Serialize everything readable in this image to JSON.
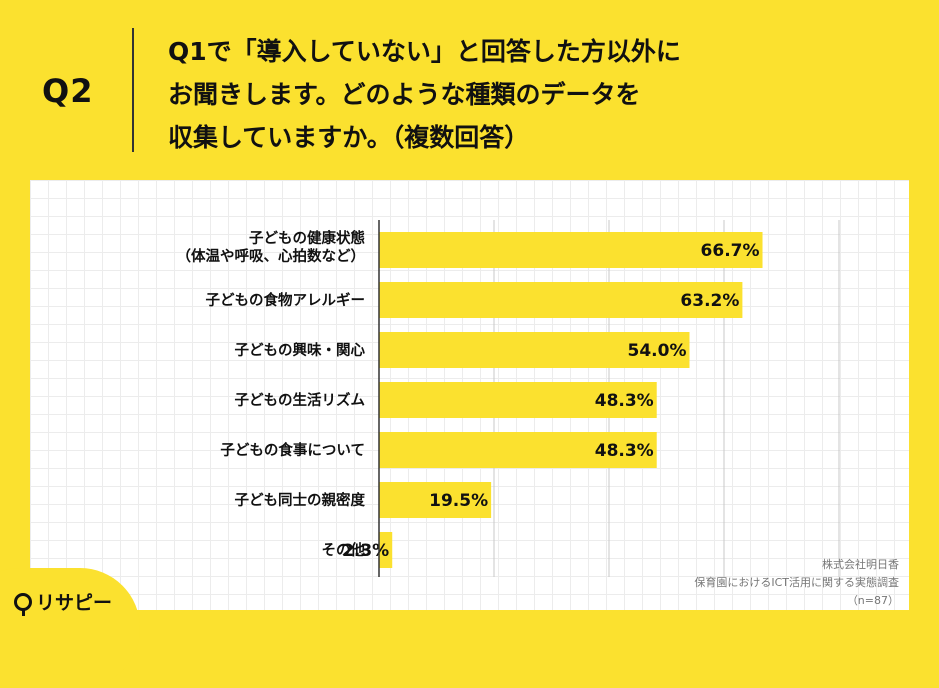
{
  "header": {
    "qlabel": "Q2",
    "question_lines": [
      "Q1で「導入していない」と回答した方以外に",
      "お聞きします。どのような種類のデータを",
      "収集していますか。（複数回答）"
    ]
  },
  "chart_data": {
    "type": "bar",
    "orientation": "horizontal",
    "categories": [
      [
        "子どもの健康状態",
        "（体温や呼吸、心拍数など）"
      ],
      [
        "子どもの食物アレルギー"
      ],
      [
        "子どもの興味・関心"
      ],
      [
        "子どもの生活リズム"
      ],
      [
        "子どもの食事について"
      ],
      [
        "子ども同士の親密度"
      ],
      [
        "その他"
      ]
    ],
    "values": [
      66.7,
      63.2,
      54.0,
      48.3,
      48.3,
      19.5,
      2.3
    ],
    "value_labels": [
      "66.7%",
      "63.2%",
      "54.0%",
      "48.3%",
      "48.3%",
      "19.5%",
      "2.3%"
    ],
    "xlim": [
      0,
      100
    ],
    "bar_color": "#fbe12f",
    "grid": true
  },
  "source": {
    "company": "株式会社明日香",
    "survey": "保育園におけるICT活用に関する実態調査",
    "n": "（n=87）"
  },
  "logo": {
    "text": "リサピー"
  }
}
